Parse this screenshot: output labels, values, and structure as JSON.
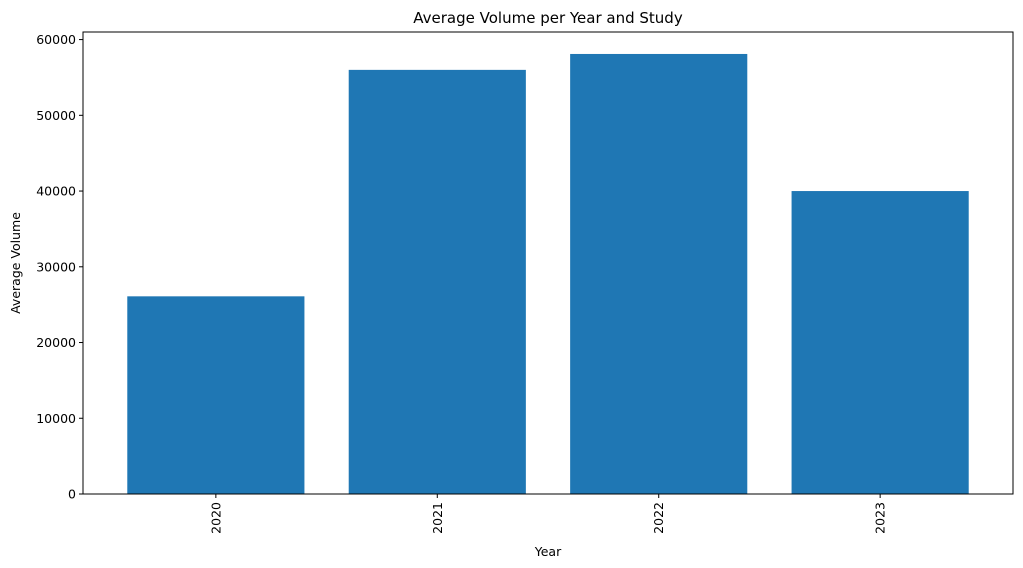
{
  "chart_data": {
    "type": "bar",
    "title": "Average Volume per Year and Study",
    "xlabel": "Year",
    "ylabel": "Average Volume",
    "categories": [
      "2020",
      "2021",
      "2022",
      "2023"
    ],
    "values": [
      26100,
      56000,
      58100,
      40000
    ],
    "ylim": [
      0,
      61000
    ],
    "yticks": [
      0,
      10000,
      20000,
      30000,
      40000,
      50000,
      60000
    ],
    "ytick_labels": [
      "0",
      "10000",
      "20000",
      "30000",
      "40000",
      "50000",
      "60000"
    ],
    "xtick_rotation": "vertical",
    "grid": false,
    "bar_color": "#1f77b4"
  }
}
